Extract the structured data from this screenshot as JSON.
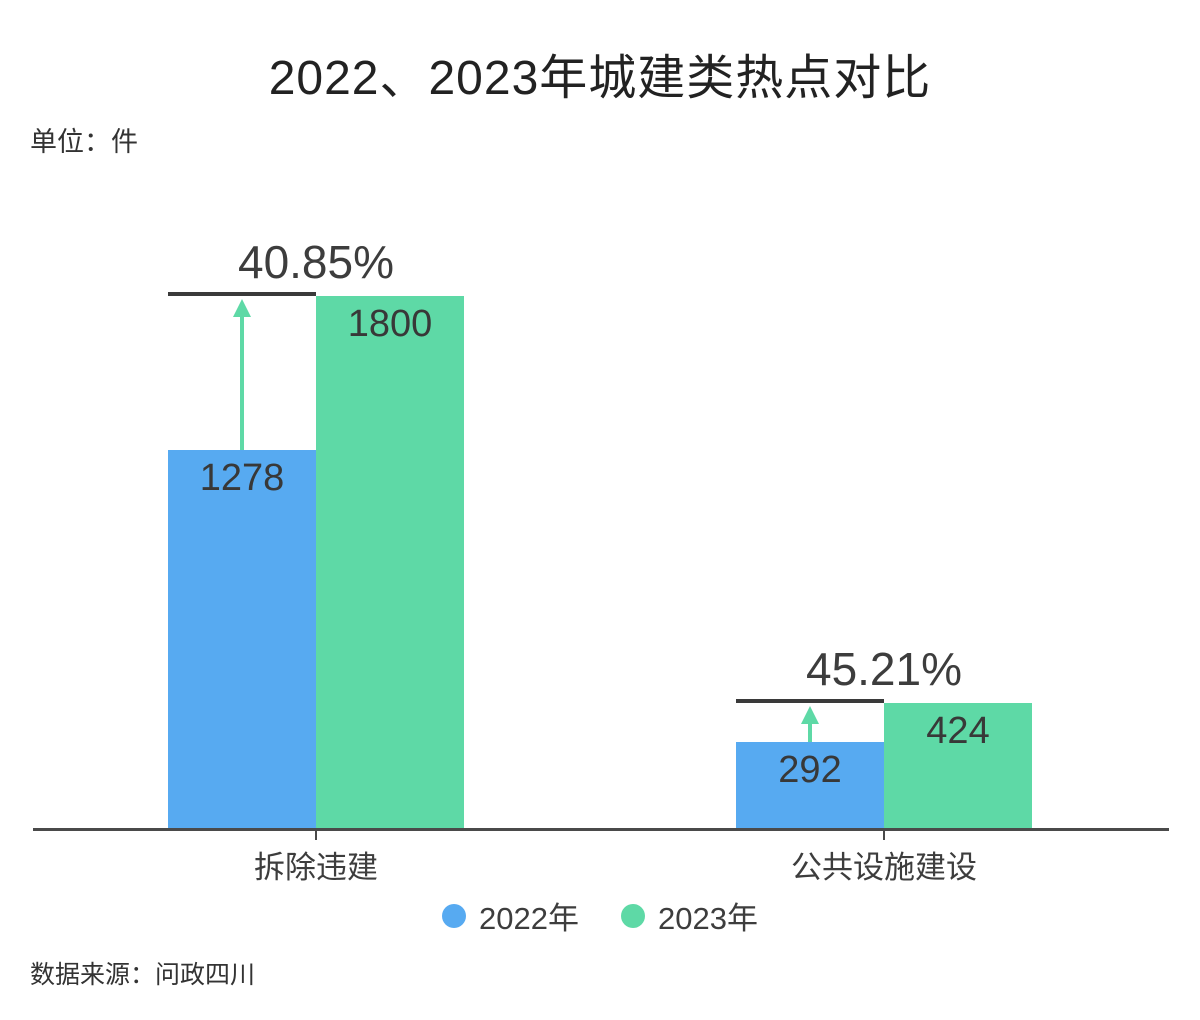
{
  "title": "2022、2023年城建类热点对比",
  "unit_label": "单位：件",
  "source_label": "数据来源：问政四川",
  "chart_data": {
    "type": "bar",
    "title": "2022、2023年城建类热点对比",
    "unit": "件",
    "categories": [
      "拆除违建",
      "公共设施建设"
    ],
    "series": [
      {
        "name": "2022年",
        "color": "#57aaf1",
        "values": [
          1278,
          292
        ]
      },
      {
        "name": "2023年",
        "color": "#5ed9a6",
        "values": [
          1800,
          424
        ]
      }
    ],
    "growth_annotations": [
      {
        "category": "拆除违建",
        "label": "40.85%"
      },
      {
        "category": "公共设施建设",
        "label": "45.21%"
      }
    ],
    "ylim": [
      0,
      1800
    ],
    "grid": false,
    "value_labels": true,
    "legend_position": "bottom",
    "source": "问政四川"
  },
  "legend": {
    "items": [
      {
        "label": "2022年",
        "color": "#57aaf1"
      },
      {
        "label": "2023年",
        "color": "#5ed9a6"
      }
    ]
  },
  "colors": {
    "background": "#ffffff",
    "title_text": "#222222",
    "value_text": "#383838",
    "label_text": "#3d3d3d",
    "axis": "#4a4a4a",
    "annotation_line": "#3a3a3a",
    "arrow": "#5ed9a6",
    "bar_2022": "#57aaf1",
    "bar_2023": "#5ed9a6"
  }
}
